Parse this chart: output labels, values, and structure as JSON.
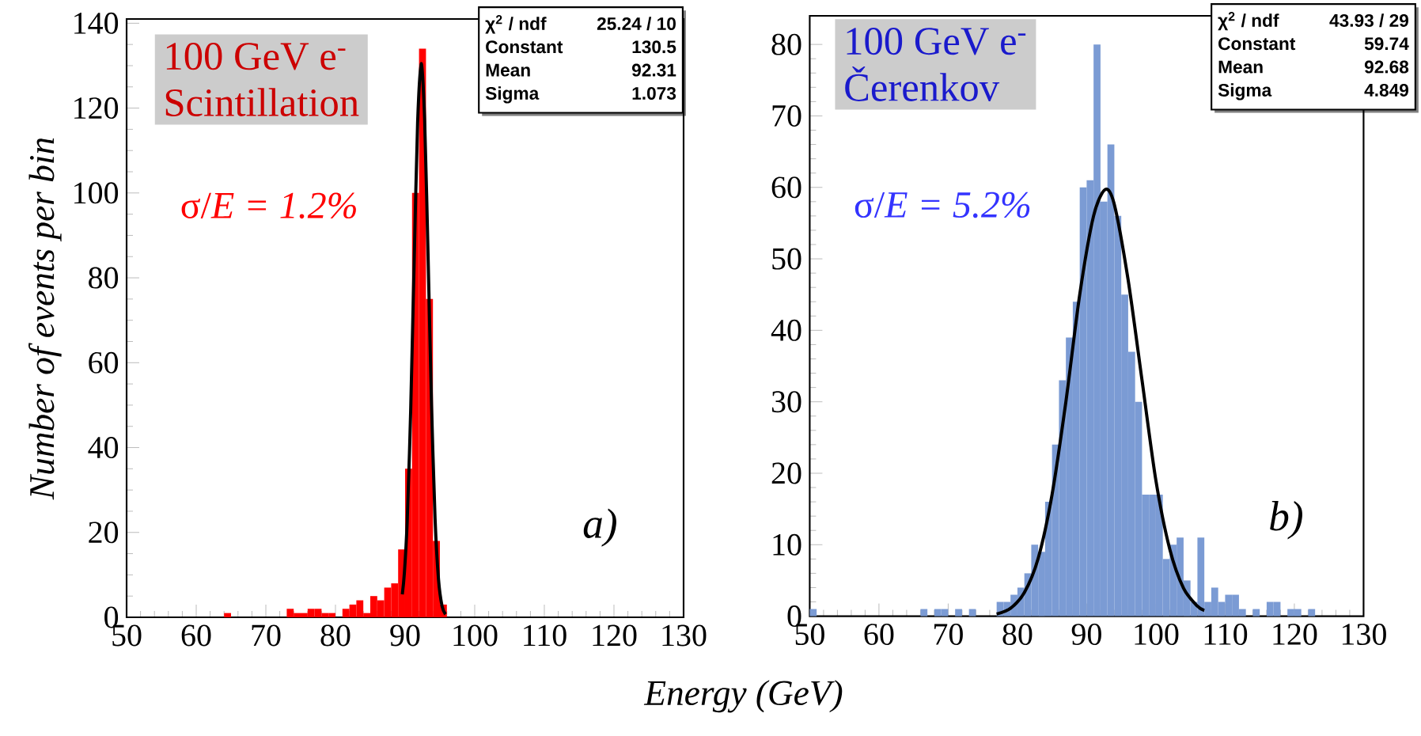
{
  "chart_data": [
    {
      "type": "histogram",
      "ylabel": "Number of events per bin",
      "xlabel": "Energy (GeV)",
      "bins": [
        50,
        51,
        52,
        53,
        54,
        55,
        56,
        57,
        58,
        59,
        60,
        61,
        62,
        63,
        64,
        65,
        66,
        67,
        68,
        69,
        70,
        71,
        72,
        73,
        74,
        75,
        76,
        77,
        78,
        79,
        80,
        81,
        82,
        83,
        84,
        85,
        86,
        87,
        88,
        89,
        90,
        91,
        92,
        93,
        94,
        95,
        96,
        97,
        98,
        99,
        100,
        101,
        102,
        103,
        104,
        105,
        106,
        107,
        108,
        109,
        110,
        111,
        112,
        113,
        114,
        115,
        116,
        117,
        118,
        119,
        120,
        121,
        122,
        123,
        124,
        125,
        126,
        127,
        128,
        129,
        130
      ],
      "series": [
        {
          "color": "#ff0000",
          "values": [
            0,
            0,
            0,
            0,
            0,
            0,
            0,
            0,
            0,
            0,
            0,
            0,
            0,
            0,
            1,
            0,
            0,
            0,
            0,
            0,
            0,
            0,
            0,
            2,
            1,
            1,
            2,
            2,
            1,
            1,
            0,
            2,
            3,
            4,
            1,
            5,
            4,
            7,
            8,
            16,
            35,
            100,
            134,
            75,
            18,
            3,
            0,
            0,
            0,
            0,
            0,
            0,
            0,
            0,
            0,
            0,
            0,
            0,
            0,
            0,
            0,
            0,
            0,
            0,
            0,
            0,
            0,
            0,
            0,
            0,
            0,
            0,
            0,
            0,
            0,
            0,
            0,
            0,
            0,
            0
          ]
        },
        {
          "type": "line",
          "color": "#000000",
          "x": [
            89.6,
            89.9,
            90.3,
            90.8,
            91.3,
            91.8,
            92.31,
            92.8,
            93.3,
            93.8,
            94.3,
            94.8,
            95.3,
            95.8
          ],
          "values": [
            5.4,
            10.5,
            22.5,
            48.5,
            83.8,
            116.5,
            130.5,
            117.6,
            85.2,
            49.8,
            23.4,
            8.9,
            2.7,
            0.7
          ]
        }
      ],
      "xlim": [
        50,
        130
      ],
      "ylim": [
        0,
        141
      ],
      "xticks": [
        50,
        60,
        70,
        80,
        90,
        100,
        110,
        120,
        130
      ],
      "yticks": [
        0,
        20,
        40,
        60,
        80,
        100,
        120,
        140
      ],
      "annotations": [
        "100 GeV e$^{-}$",
        "Scintillation",
        "σ/*E = 1.2%*",
        "a)",
        "χ$^{2}$ / ndf",
        "25.24 / 10",
        "Constant",
        "130.5",
        "Mean",
        "92.31",
        "Sigma",
        "1.073"
      ]
    },
    {
      "type": "histogram",
      "bins": [
        50,
        51,
        52,
        53,
        54,
        55,
        56,
        57,
        58,
        59,
        60,
        61,
        62,
        63,
        64,
        65,
        66,
        67,
        68,
        69,
        70,
        71,
        72,
        73,
        74,
        75,
        76,
        77,
        78,
        79,
        80,
        81,
        82,
        83,
        84,
        85,
        86,
        87,
        88,
        89,
        90,
        91,
        92,
        93,
        94,
        95,
        96,
        97,
        98,
        99,
        100,
        101,
        102,
        103,
        104,
        105,
        106,
        107,
        108,
        109,
        110,
        111,
        112,
        113,
        114,
        115,
        116,
        117,
        118,
        119,
        120,
        121,
        122,
        123,
        124,
        125,
        126,
        127,
        128,
        129,
        130
      ],
      "series": [
        {
          "color": "#7b9bd4",
          "values": [
            1,
            0,
            0,
            0,
            0,
            0,
            0,
            0,
            0,
            0,
            0,
            0,
            0,
            0,
            0,
            0,
            1,
            0,
            1,
            1,
            0,
            1,
            0,
            1,
            0,
            0,
            0,
            2,
            2,
            3,
            4,
            6,
            10,
            9,
            16,
            24,
            33,
            39,
            44,
            60,
            61,
            80,
            58,
            66,
            56,
            45,
            37,
            30,
            17,
            17,
            17,
            8,
            10,
            11,
            5,
            2,
            11,
            2,
            4,
            2,
            3,
            3,
            1,
            0,
            1,
            0,
            2,
            2,
            0,
            1,
            1,
            0,
            1,
            0,
            0,
            0,
            0,
            0,
            0,
            0
          ]
        },
        {
          "type": "line",
          "color": "#000000",
          "x": [
            77,
            79,
            81,
            83,
            85,
            87,
            89,
            91,
            92.68,
            94,
            96,
            98,
            100,
            102,
            104,
            106,
            107
          ],
          "values": [
            0.3,
            1.1,
            3.3,
            8.1,
            17,
            30,
            45,
            56,
            59.7,
            57.6,
            47,
            33,
            19,
            9.4,
            3.9,
            1.4,
            0.8
          ]
        }
      ],
      "xlim": [
        50,
        130
      ],
      "ylim": [
        0,
        84
      ],
      "xticks": [
        50,
        60,
        70,
        80,
        90,
        100,
        110,
        120,
        130
      ],
      "yticks": [
        0,
        10,
        20,
        30,
        40,
        50,
        60,
        70,
        80
      ],
      "annotations": [
        "100 GeV e$^{-}$",
        "Čerenkov",
        "σ/*E = 5.2%*",
        "b)",
        "χ$^{2}$ / ndf",
        "43.93 / 29",
        "Constant",
        "59.74",
        "Mean",
        "92.68",
        "Sigma",
        "4.849"
      ]
    }
  ]
}
